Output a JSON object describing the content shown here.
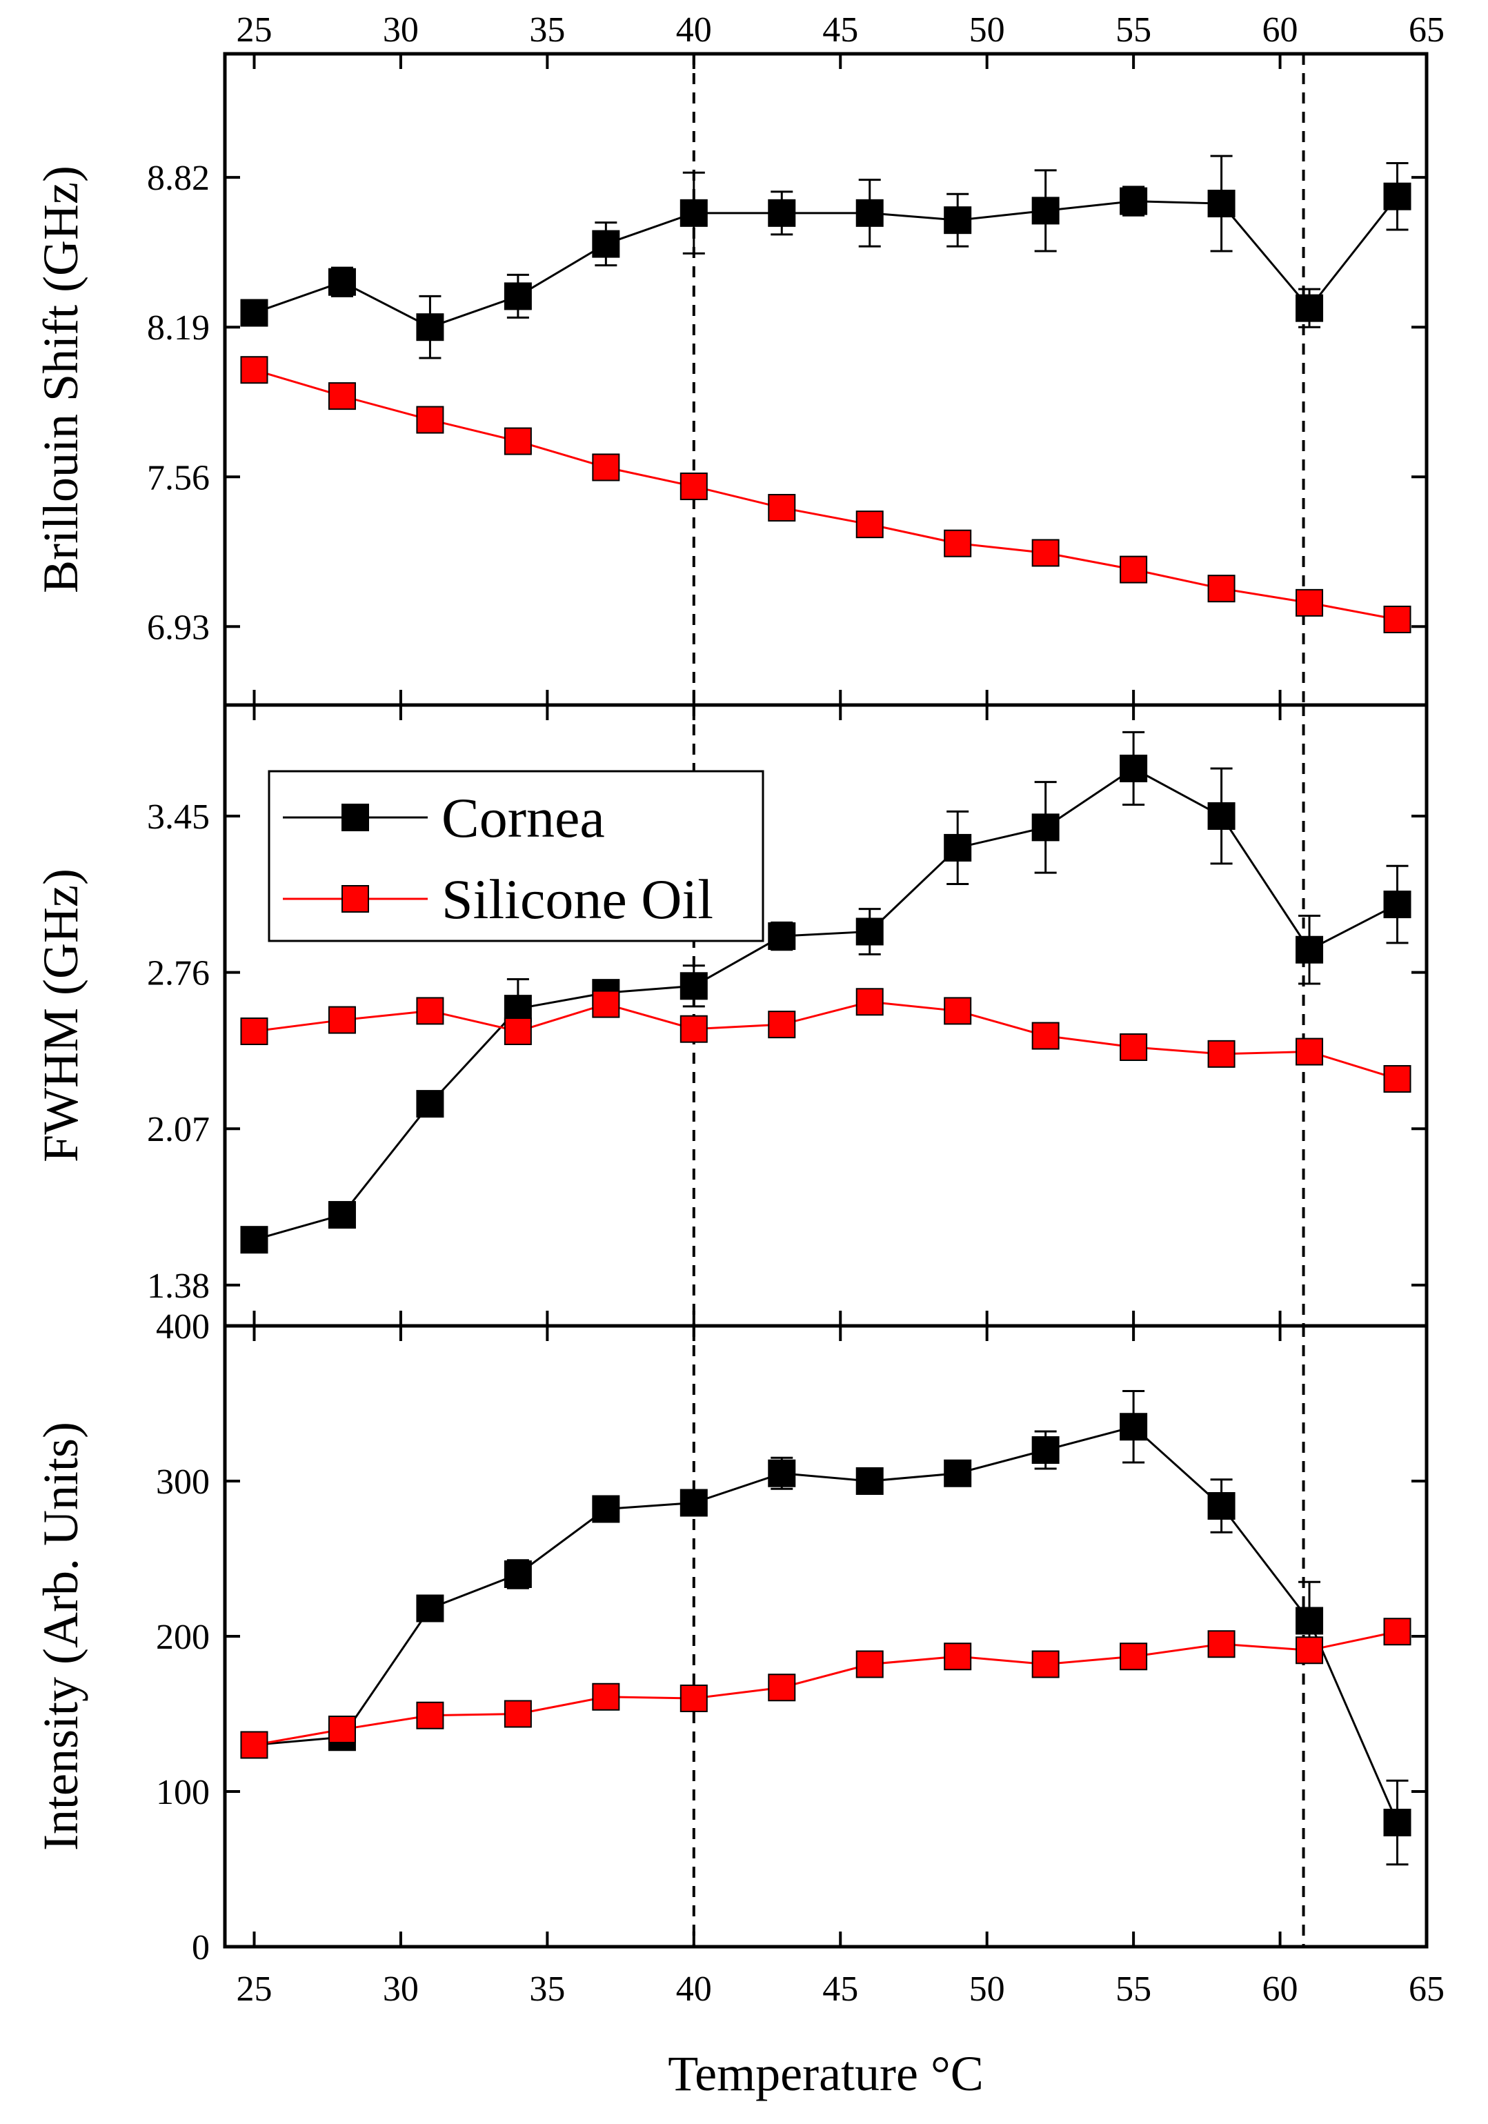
{
  "chart_data": {
    "type": "line",
    "layout": "three vertically stacked panels sharing the x axis",
    "xlabel": "Temperature °C",
    "x": [
      25,
      28,
      31,
      34,
      37,
      40,
      43,
      46,
      49,
      52,
      55,
      58,
      61,
      64
    ],
    "xlim": [
      24,
      65
    ],
    "x_ticks": [
      "25",
      "30",
      "35",
      "40",
      "45",
      "50",
      "55",
      "60",
      "65"
    ],
    "vlines": [
      40,
      60.8
    ],
    "legend": {
      "location": "upper-left of middle panel",
      "entries": [
        "Cornea",
        "Silicone Oil"
      ]
    },
    "colors": {
      "cornea": "#000000",
      "silicone_oil": "#ff0000"
    },
    "panels": [
      {
        "ylabel": "Brillouin Shift (GHz)",
        "ylim": [
          6.6,
          9.34
        ],
        "y_ticks": [
          "6.93",
          "7.56",
          "8.19",
          "8.82"
        ],
        "series": [
          {
            "name": "Cornea",
            "values": [
              8.25,
              8.38,
              8.19,
              8.32,
              8.54,
              8.67,
              8.67,
              8.67,
              8.64,
              8.68,
              8.72,
              8.71,
              8.27,
              8.74
            ],
            "errors": [
              0.03,
              0.06,
              0.13,
              0.09,
              0.09,
              0.17,
              0.09,
              0.14,
              0.11,
              0.17,
              0.06,
              0.2,
              0.08,
              0.14
            ]
          },
          {
            "name": "Silicone Oil",
            "values": [
              8.01,
              7.9,
              7.8,
              7.71,
              7.6,
              7.52,
              7.43,
              7.36,
              7.28,
              7.24,
              7.17,
              7.09,
              7.03,
              6.96
            ],
            "errors": []
          }
        ]
      },
      {
        "ylabel": "FWHM (GHz)",
        "ylim": [
          1.2,
          3.94
        ],
        "y_ticks": [
          "1.38",
          "2.07",
          "2.76",
          "3.45"
        ],
        "series": [
          {
            "name": "Cornea",
            "values": [
              1.58,
              1.69,
              2.18,
              2.6,
              2.67,
              2.7,
              2.92,
              2.94,
              3.31,
              3.4,
              3.66,
              3.45,
              2.86,
              3.06
            ],
            "errors": [
              0,
              0,
              0,
              0.13,
              0.03,
              0.09,
              0.06,
              0.1,
              0.16,
              0.2,
              0.16,
              0.21,
              0.15,
              0.17
            ]
          },
          {
            "name": "Silicone Oil",
            "values": [
              2.5,
              2.55,
              2.59,
              2.5,
              2.62,
              2.51,
              2.53,
              2.63,
              2.59,
              2.48,
              2.43,
              2.4,
              2.41,
              2.29
            ],
            "errors": []
          }
        ]
      },
      {
        "ylabel": "Intensity (Arb. Units)",
        "ylim": [
          0,
          400
        ],
        "y_ticks": [
          "0",
          "100",
          "200",
          "300",
          "400"
        ],
        "series": [
          {
            "name": "Cornea",
            "values": [
              130,
              135,
              218,
              240,
              282,
              286,
              305,
              300,
              305,
              320,
              335,
              284,
              210,
              80
            ],
            "errors": [
              5,
              5,
              5,
              9,
              4,
              4,
              10,
              8,
              3,
              12,
              23,
              17,
              25,
              27
            ]
          },
          {
            "name": "Silicone Oil",
            "values": [
              130,
              140,
              149,
              150,
              161,
              160,
              167,
              182,
              187,
              182,
              187,
              195,
              191,
              203
            ],
            "errors": []
          }
        ]
      }
    ]
  }
}
